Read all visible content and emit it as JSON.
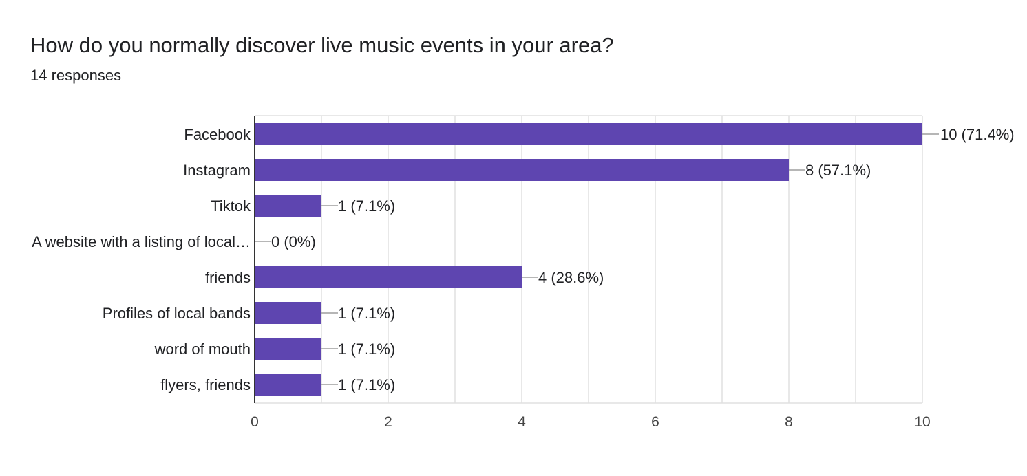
{
  "header": {
    "title": "How do you normally discover live music events in your area?",
    "subtitle": "14 responses"
  },
  "chart_data": {
    "type": "bar",
    "orientation": "horizontal",
    "categories": [
      "Facebook",
      "Instagram",
      "Tiktok",
      "A website with a listing of local…",
      "friends",
      "Profiles of local bands",
      "word of mouth",
      "flyers, friends"
    ],
    "values": [
      10,
      8,
      1,
      0,
      4,
      1,
      1,
      1
    ],
    "data_labels": [
      "10 (71.4%)",
      "8 (57.1%)",
      "1 (7.1%)",
      "0 (0%)",
      "4 (28.6%)",
      "1 (7.1%)",
      "1 (7.1%)",
      "1 (7.1%)"
    ],
    "x_ticks": [
      "0",
      "2",
      "4",
      "6",
      "8",
      "10"
    ],
    "xlim": [
      0,
      10
    ],
    "grid": true,
    "colors": {
      "bar": "#5e45b0",
      "grid": "#e0e0e0",
      "axis": "#333333",
      "leader": "#9e9e9e"
    }
  }
}
